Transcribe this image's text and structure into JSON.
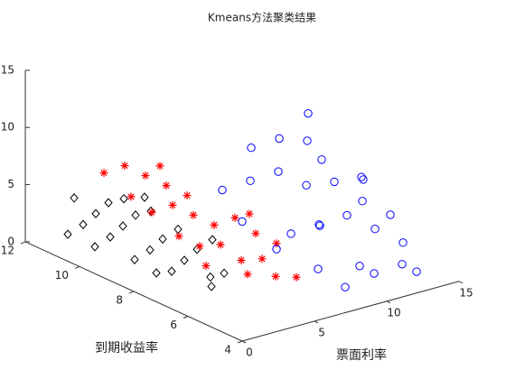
{
  "chart_data": {
    "type": "scatter3d",
    "title": "Kmeans方法聚类结果",
    "xlabel": "票面利率",
    "ylabel": "到期收益率",
    "xlim": [
      0,
      15
    ],
    "xticks": [
      0,
      5,
      10,
      15
    ],
    "ylim": [
      4,
      12
    ],
    "yticks": [
      4,
      6,
      8,
      10,
      12
    ],
    "zlim": [
      0,
      15
    ],
    "zticks": [
      0,
      5,
      10,
      15
    ],
    "series": [
      {
        "color": "#000000",
        "marker": "diamond",
        "x": [
          2,
          2.5,
          3,
          3.5,
          4,
          2,
          2.5,
          3,
          3.5,
          4,
          2.5,
          3,
          3.5,
          4,
          3,
          3.5,
          4,
          4.5,
          3.5,
          4,
          3,
          4.5,
          2.5,
          3.8
        ],
        "y": [
          11.5,
          11.2,
          11,
          10.8,
          10.5,
          10.5,
          10.2,
          10,
          9.8,
          9.5,
          9.3,
          9,
          8.8,
          8.5,
          8.2,
          8,
          7.8,
          7.5,
          7,
          6.8,
          11.8,
          10,
          8.5,
          7.2
        ],
        "z": [
          0.5,
          1.5,
          2.5,
          3.5,
          4,
          0.5,
          1.5,
          2.5,
          3.5,
          4,
          0.5,
          1.5,
          2.5,
          3.5,
          0.5,
          1.5,
          2.5,
          3.5,
          0.3,
          1.5,
          3,
          4.5,
          0.2,
          0.8
        ]
      },
      {
        "color": "#ff0000",
        "marker": "asterisk",
        "x": [
          4.5,
          5,
          5.5,
          6,
          6.5,
          5,
          5.5,
          6,
          6.5,
          7,
          5,
          5.5,
          6,
          6.5,
          7,
          7.5,
          6,
          7,
          7.5,
          8,
          4.5,
          6.5,
          5,
          8
        ],
        "y": [
          11.5,
          11,
          10.5,
          10,
          9.5,
          10,
          9.5,
          9,
          8.5,
          8,
          9,
          8.5,
          8,
          7.5,
          7,
          7.5,
          7,
          6.5,
          6,
          7,
          10.5,
          10.5,
          8,
          8
        ],
        "z": [
          5,
          6,
          5.5,
          5,
          4.5,
          3,
          4,
          3.5,
          3,
          4,
          2,
          1.5,
          2,
          1,
          1.5,
          3,
          0.5,
          0.5,
          0.8,
          2.5,
          4,
          6,
          0.5,
          4
        ]
      },
      {
        "color": "#0000ff",
        "marker": "circle",
        "x": [
          8,
          9,
          10,
          11,
          12,
          13,
          14,
          9,
          10,
          11,
          12,
          13,
          8,
          9,
          10,
          11,
          12,
          13,
          10,
          11,
          12,
          13,
          13,
          14,
          9,
          11,
          7.5,
          12
        ],
        "y": [
          9,
          8.5,
          8,
          7.5,
          7,
          6.5,
          6,
          7,
          6.5,
          6,
          5.5,
          5,
          7,
          6,
          5,
          5,
          4.5,
          4.5,
          9,
          8.5,
          8,
          8.5,
          8,
          7,
          5,
          7,
          8,
          6
        ],
        "z": [
          5,
          6,
          7,
          6,
          6.5,
          5,
          4,
          3,
          4,
          5,
          4,
          3,
          2,
          1,
          2,
          1,
          2,
          1,
          8,
          9,
          9,
          10.5,
          7,
          6,
          0.5,
          3,
          3.5,
          8
        ]
      }
    ]
  }
}
